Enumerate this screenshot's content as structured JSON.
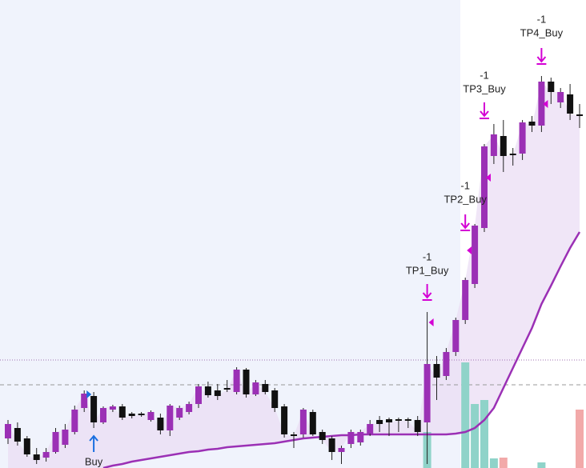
{
  "chart_data": {
    "type": "candlestick",
    "ylim": [
      0,
      585
    ],
    "colors": {
      "up": "#9b30b5",
      "down": "#111111",
      "ma": "#9b30b5",
      "fill": "#eadcf3",
      "signal": "#d400d4",
      "buy": "#1a6fe0",
      "hist_up": "#8fd3c9",
      "hist_down": "#f2a9a9"
    },
    "open": [
      37,
      50,
      37,
      17,
      13,
      20,
      29,
      45,
      75,
      90,
      57,
      73,
      77,
      68,
      68,
      60,
      63,
      47,
      63,
      70,
      80,
      102,
      97,
      100,
      95,
      123,
      92,
      105,
      97,
      77,
      42,
      42,
      70,
      45,
      37,
      20,
      30,
      32,
      43,
      60,
      61,
      61,
      61,
      60,
      57,
      130,
      115,
      145,
      185,
      230,
      300,
      390,
      415,
      393,
      393,
      433,
      428,
      483,
      457,
      467,
      442
    ],
    "high": [
      60,
      57,
      40,
      25,
      25,
      50,
      55,
      78,
      97,
      95,
      77,
      79,
      80,
      70,
      70,
      72,
      68,
      80,
      78,
      83,
      105,
      108,
      105,
      110,
      126,
      125,
      110,
      110,
      100,
      80,
      45,
      75,
      73,
      48,
      40,
      28,
      48,
      48,
      60,
      65,
      63,
      63,
      63,
      65,
      195,
      140,
      150,
      188,
      238,
      305,
      405,
      430,
      435,
      400,
      435,
      440,
      490,
      488,
      475,
      480,
      455
    ],
    "low": [
      30,
      28,
      14,
      5,
      8,
      18,
      25,
      42,
      70,
      50,
      55,
      70,
      60,
      62,
      64,
      58,
      42,
      40,
      60,
      67,
      75,
      88,
      85,
      95,
      92,
      88,
      90,
      92,
      70,
      38,
      25,
      38,
      40,
      30,
      10,
      5,
      25,
      28,
      40,
      45,
      40,
      45,
      50,
      40,
      5,
      85,
      110,
      140,
      180,
      225,
      295,
      380,
      370,
      378,
      385,
      420,
      420,
      455,
      450,
      435,
      425
    ],
    "close": [
      55,
      33,
      17,
      10,
      20,
      45,
      48,
      73,
      93,
      57,
      75,
      77,
      63,
      65,
      66,
      70,
      47,
      78,
      75,
      80,
      102,
      91,
      90,
      98,
      123,
      92,
      107,
      95,
      75,
      42,
      40,
      73,
      42,
      35,
      20,
      25,
      45,
      45,
      55,
      55,
      57,
      59,
      59,
      45,
      130,
      113,
      145,
      185,
      235,
      303,
      402,
      417,
      390,
      391,
      432,
      428,
      483,
      470,
      470,
      443,
      440
    ],
    "ma": [
      null,
      null,
      null,
      null,
      null,
      null,
      null,
      null,
      null,
      null,
      0,
      3,
      5,
      8,
      10,
      12,
      14,
      16,
      18,
      20,
      21,
      23,
      24,
      26,
      27,
      28,
      29,
      30,
      31,
      33,
      35,
      37,
      38,
      39,
      40,
      41,
      41,
      42,
      42,
      42,
      42,
      42,
      42,
      42,
      42,
      42,
      42,
      43,
      45,
      50,
      60,
      75,
      100,
      125,
      150,
      175,
      205,
      228,
      252,
      275,
      295
    ],
    "hist_up": [
      null,
      null,
      null,
      null,
      null,
      null,
      null,
      null,
      null,
      null,
      null,
      null,
      null,
      null,
      null,
      null,
      null,
      null,
      null,
      null,
      null,
      null,
      null,
      null,
      null,
      null,
      null,
      null,
      null,
      null,
      null,
      null,
      null,
      null,
      null,
      null,
      null,
      null,
      null,
      null,
      null,
      null,
      null,
      null,
      45,
      null,
      null,
      null,
      132,
      80,
      85,
      12,
      null,
      null,
      null,
      null,
      7,
      null,
      null,
      null,
      null
    ],
    "hist_down": [
      null,
      null,
      null,
      null,
      null,
      null,
      null,
      null,
      null,
      null,
      null,
      null,
      null,
      null,
      null,
      null,
      null,
      null,
      null,
      null,
      null,
      null,
      null,
      null,
      null,
      null,
      null,
      null,
      null,
      null,
      null,
      null,
      null,
      null,
      null,
      null,
      null,
      null,
      null,
      null,
      null,
      null,
      null,
      null,
      null,
      null,
      null,
      null,
      null,
      null,
      null,
      null,
      13,
      null,
      null,
      null,
      null,
      null,
      null,
      null,
      73
    ],
    "levels": [
      135,
      104
    ],
    "signals": [
      {
        "qty": "-1",
        "label": "TP1_Buy"
      },
      {
        "qty": "-1",
        "label": "TP2_Buy"
      },
      {
        "qty": "-1",
        "label": "TP3_Buy"
      },
      {
        "qty": "-1",
        "label": "TP4_Buy"
      }
    ],
    "buy_label": "Buy"
  }
}
